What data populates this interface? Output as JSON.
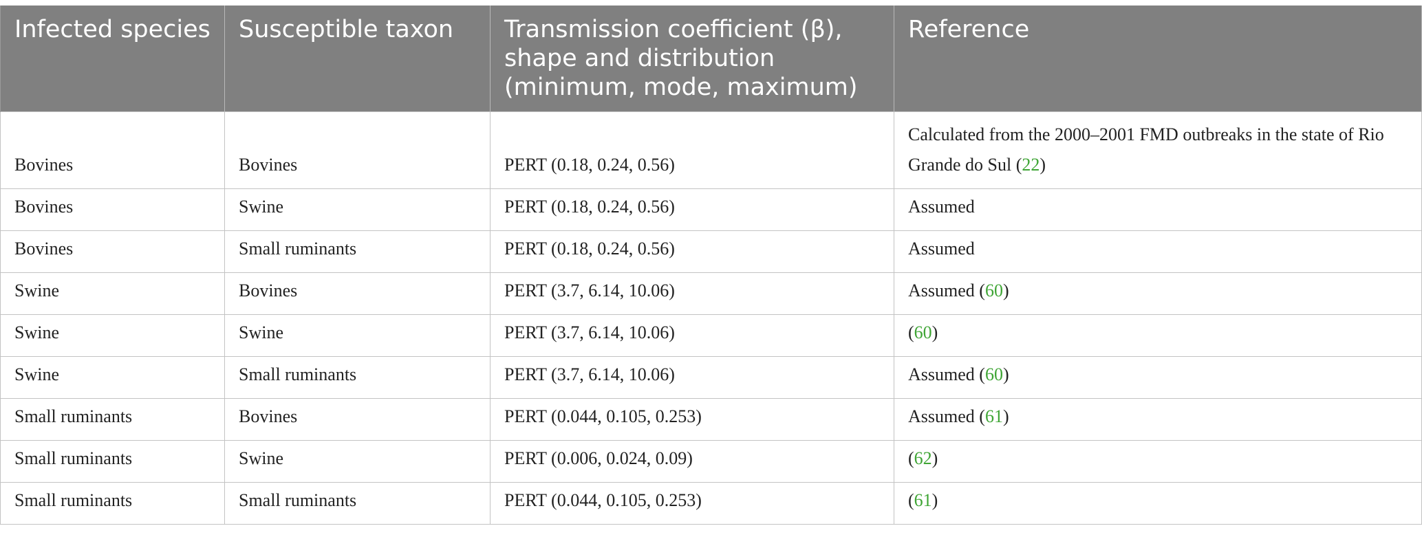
{
  "table": {
    "headers": [
      "Infected species",
      "Susceptible taxon",
      "Transmission coefficient (β), shape and distribution (minimum, mode, maximum)",
      "Reference"
    ],
    "rows": [
      {
        "infected": "Bovines",
        "susceptible": "Bovines",
        "coefficient": "PERT (0.18, 0.24, 0.56)",
        "reference": {
          "prefix": "Calculated from the 2000–2001 FMD outbreaks in the state of Rio Grande do Sul (",
          "link": "22",
          "suffix": ")"
        }
      },
      {
        "infected": "Bovines",
        "susceptible": "Swine",
        "coefficient": "PERT (0.18, 0.24, 0.56)",
        "reference": {
          "prefix": "Assumed",
          "link": "",
          "suffix": ""
        }
      },
      {
        "infected": "Bovines",
        "susceptible": "Small ruminants",
        "coefficient": "PERT (0.18, 0.24, 0.56)",
        "reference": {
          "prefix": "Assumed",
          "link": "",
          "suffix": ""
        }
      },
      {
        "infected": "Swine",
        "susceptible": "Bovines",
        "coefficient": "PERT (3.7, 6.14, 10.06)",
        "reference": {
          "prefix": "Assumed (",
          "link": "60",
          "suffix": ")"
        }
      },
      {
        "infected": "Swine",
        "susceptible": "Swine",
        "coefficient": "PERT (3.7, 6.14, 10.06)",
        "reference": {
          "prefix": "(",
          "link": "60",
          "suffix": ")"
        }
      },
      {
        "infected": "Swine",
        "susceptible": "Small ruminants",
        "coefficient": "PERT (3.7, 6.14, 10.06)",
        "reference": {
          "prefix": "Assumed (",
          "link": "60",
          "suffix": ")"
        }
      },
      {
        "infected": "Small ruminants",
        "susceptible": "Bovines",
        "coefficient": "PERT (0.044, 0.105, 0.253)",
        "reference": {
          "prefix": "Assumed (",
          "link": "61",
          "suffix": ")"
        }
      },
      {
        "infected": "Small ruminants",
        "susceptible": "Swine",
        "coefficient": "PERT (0.006, 0.024, 0.09)",
        "reference": {
          "prefix": "(",
          "link": "62",
          "suffix": ")"
        }
      },
      {
        "infected": "Small ruminants",
        "susceptible": "Small ruminants",
        "coefficient": "PERT (0.044, 0.105, 0.253)",
        "reference": {
          "prefix": "(",
          "link": "61",
          "suffix": ")"
        }
      }
    ]
  },
  "colors": {
    "header_bg": "#808080",
    "header_text": "#ffffff",
    "link": "#3fa535",
    "grid": "#c3c3c3"
  }
}
